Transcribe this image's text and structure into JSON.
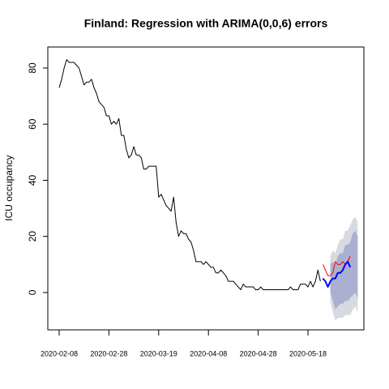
{
  "chart_data": {
    "type": "line",
    "title": "Finland: Regression with ARIMA(0,0,6) errors",
    "ylabel": "ICU occupancy",
    "x": [
      "2020-02-08",
      "2020-02-09",
      "2020-02-10",
      "2020-02-11",
      "2020-02-12",
      "2020-02-13",
      "2020-02-14",
      "2020-02-15",
      "2020-02-16",
      "2020-02-17",
      "2020-02-18",
      "2020-02-19",
      "2020-02-20",
      "2020-02-21",
      "2020-02-22",
      "2020-02-23",
      "2020-02-24",
      "2020-02-25",
      "2020-02-26",
      "2020-02-27",
      "2020-02-28",
      "2020-02-29",
      "2020-03-01",
      "2020-03-02",
      "2020-03-03",
      "2020-03-04",
      "2020-03-05",
      "2020-03-06",
      "2020-03-07",
      "2020-03-08",
      "2020-03-09",
      "2020-03-10",
      "2020-03-11",
      "2020-03-12",
      "2020-03-13",
      "2020-03-14",
      "2020-03-15",
      "2020-03-16",
      "2020-03-17",
      "2020-03-18",
      "2020-03-19",
      "2020-03-20",
      "2020-03-21",
      "2020-03-22",
      "2020-03-23",
      "2020-03-24",
      "2020-03-25",
      "2020-03-26",
      "2020-03-27",
      "2020-03-28",
      "2020-03-29",
      "2020-03-30",
      "2020-03-31",
      "2020-04-01",
      "2020-04-02",
      "2020-04-03",
      "2020-04-04",
      "2020-04-05",
      "2020-04-06",
      "2020-04-07",
      "2020-04-08",
      "2020-04-09",
      "2020-04-10",
      "2020-04-11",
      "2020-04-12",
      "2020-04-13",
      "2020-04-14",
      "2020-04-15",
      "2020-04-16",
      "2020-04-17",
      "2020-04-18",
      "2020-04-19",
      "2020-04-20",
      "2020-04-21",
      "2020-04-22",
      "2020-04-23",
      "2020-04-24",
      "2020-04-25",
      "2020-04-26",
      "2020-04-27",
      "2020-04-28",
      "2020-04-29",
      "2020-04-30",
      "2020-05-01",
      "2020-05-02",
      "2020-05-03",
      "2020-05-04",
      "2020-05-05",
      "2020-05-06",
      "2020-05-07",
      "2020-05-08",
      "2020-05-09",
      "2020-05-10",
      "2020-05-11",
      "2020-05-12",
      "2020-05-13",
      "2020-05-14",
      "2020-05-15",
      "2020-05-16",
      "2020-05-17",
      "2020-05-18",
      "2020-05-19",
      "2020-05-20",
      "2020-05-21",
      "2020-05-22",
      "2020-05-23",
      "2020-05-24",
      "2020-05-25",
      "2020-05-26",
      "2020-05-27",
      "2020-05-28",
      "2020-05-29",
      "2020-05-30",
      "2020-05-31",
      "2020-06-01",
      "2020-06-02",
      "2020-06-03",
      "2020-06-04"
    ],
    "series": [
      {
        "color": "#000000",
        "values": [
          73,
          76,
          80,
          83,
          82,
          82,
          82,
          81,
          80,
          77,
          74,
          75,
          75,
          76,
          73,
          71,
          68,
          67,
          66,
          63,
          63,
          60,
          61,
          60,
          62,
          56,
          56,
          51,
          48,
          49,
          52,
          49,
          49,
          48,
          44,
          44,
          45,
          45,
          45,
          45,
          34,
          35,
          33,
          31,
          30,
          29,
          34,
          25,
          20,
          22,
          21,
          21,
          19,
          18,
          15,
          11,
          11,
          11,
          10,
          11,
          10,
          9,
          9,
          7,
          7,
          8,
          7,
          6,
          4,
          4,
          4,
          3,
          2,
          1,
          3,
          2,
          2,
          2,
          2,
          1,
          1,
          2,
          1,
          1,
          1,
          1,
          1,
          1,
          1,
          1,
          1,
          1,
          1,
          2,
          1,
          1,
          1,
          3,
          3,
          3,
          2,
          4,
          2,
          4,
          8,
          4,
          null,
          null,
          null,
          null,
          null,
          null,
          null,
          null,
          null,
          null,
          null,
          null
        ]
      },
      {
        "color": "#ff0000",
        "values": [
          null,
          null,
          null,
          null,
          null,
          null,
          null,
          null,
          null,
          null,
          null,
          null,
          null,
          null,
          null,
          null,
          null,
          null,
          null,
          null,
          null,
          null,
          null,
          null,
          null,
          null,
          null,
          null,
          null,
          null,
          null,
          null,
          null,
          null,
          null,
          null,
          null,
          null,
          null,
          null,
          null,
          null,
          null,
          null,
          null,
          null,
          null,
          null,
          null,
          null,
          null,
          null,
          null,
          null,
          null,
          null,
          null,
          null,
          null,
          null,
          null,
          null,
          null,
          null,
          null,
          null,
          null,
          null,
          null,
          null,
          null,
          null,
          null,
          null,
          null,
          null,
          null,
          null,
          null,
          null,
          null,
          null,
          null,
          null,
          null,
          null,
          null,
          null,
          null,
          null,
          null,
          null,
          null,
          null,
          null,
          null,
          null,
          null,
          null,
          null,
          null,
          null,
          null,
          null,
          null,
          null,
          10,
          8,
          6,
          6,
          7,
          11,
          10,
          10,
          11,
          10,
          11,
          13
        ]
      },
      {
        "color": "#0000ff",
        "values": [
          null,
          null,
          null,
          null,
          null,
          null,
          null,
          null,
          null,
          null,
          null,
          null,
          null,
          null,
          null,
          null,
          null,
          null,
          null,
          null,
          null,
          null,
          null,
          null,
          null,
          null,
          null,
          null,
          null,
          null,
          null,
          null,
          null,
          null,
          null,
          null,
          null,
          null,
          null,
          null,
          null,
          null,
          null,
          null,
          null,
          null,
          null,
          null,
          null,
          null,
          null,
          null,
          null,
          null,
          null,
          null,
          null,
          null,
          null,
          null,
          null,
          null,
          null,
          null,
          null,
          null,
          null,
          null,
          null,
          null,
          null,
          null,
          null,
          null,
          null,
          null,
          null,
          null,
          null,
          null,
          null,
          null,
          null,
          null,
          null,
          null,
          null,
          null,
          null,
          null,
          null,
          null,
          null,
          null,
          null,
          null,
          null,
          null,
          null,
          null,
          null,
          null,
          null,
          null,
          null,
          null,
          5,
          4,
          2,
          4,
          5,
          5,
          7,
          7,
          8,
          10,
          11,
          9
        ]
      }
    ],
    "bands": [
      {
        "color": "#d9d9e0",
        "lower": [
          -3,
          -7,
          -10,
          -9,
          -9,
          -9,
          -8,
          -8,
          -8,
          -6,
          -5,
          -7
        ],
        "upper": [
          13,
          15,
          14,
          17,
          19,
          19,
          22,
          22,
          24,
          26,
          27,
          25
        ]
      },
      {
        "color": "#a9b0d0",
        "lower": [
          0,
          -3,
          -6,
          -5,
          -4,
          -4,
          -3,
          -3,
          -2,
          -1,
          0,
          -2
        ],
        "upper": [
          10,
          11,
          10,
          13,
          14,
          14,
          17,
          17,
          18,
          21,
          22,
          20
        ]
      }
    ],
    "band_start": "2020-05-27",
    "ylim": [
      -13.3,
      87.5
    ],
    "yticks": [
      0,
      20,
      40,
      60,
      80
    ],
    "xticks": [
      "2020-02-08",
      "2020-02-28",
      "2020-03-19",
      "2020-04-08",
      "2020-04-28",
      "2020-05-18"
    ]
  }
}
